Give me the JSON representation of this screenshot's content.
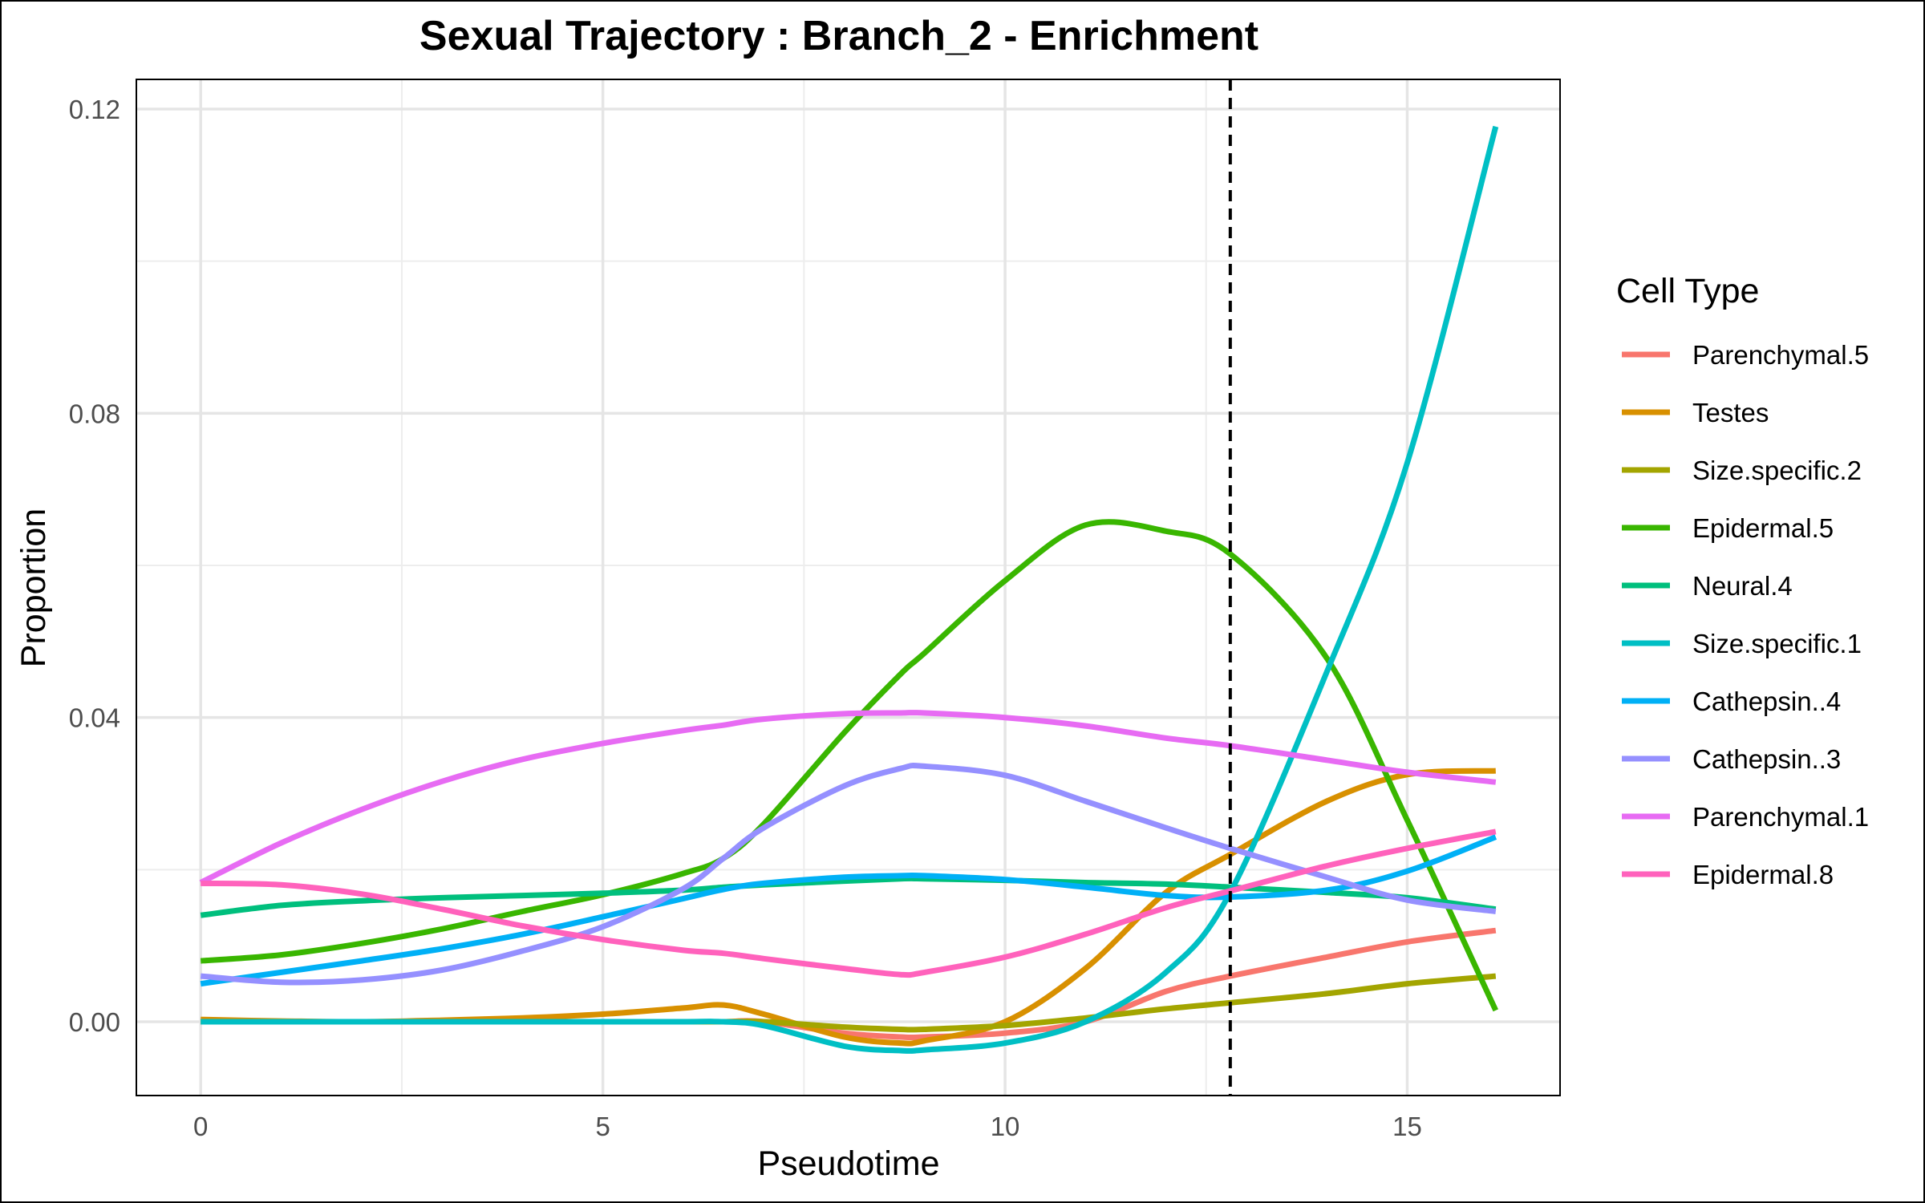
{
  "chart_data": {
    "type": "line",
    "title": "Sexual Trajectory : Branch_2 - Enrichment",
    "xlabel": "Pseudotime",
    "ylabel": "Proportion",
    "xlim": [
      -0.8,
      16.9
    ],
    "ylim": [
      -0.0097,
      0.1239
    ],
    "x_ticks": [
      0,
      5,
      10,
      15
    ],
    "x_tick_labels": [
      "0",
      "5",
      "10",
      "15"
    ],
    "y_ticks": [
      0,
      0.04,
      0.08,
      0.12
    ],
    "y_tick_labels": [
      "0.00",
      "0.04",
      "0.08",
      "0.12"
    ],
    "grid": true,
    "vline": {
      "x": 12.8,
      "style": "dashed",
      "color": "#000000"
    },
    "legend": {
      "title": "Cell Type",
      "position": "right"
    },
    "x": [
      0,
      1,
      2,
      3,
      4,
      5,
      6,
      6.5,
      7,
      8,
      8.7,
      9,
      10,
      11,
      12,
      12.8,
      14,
      15,
      16.1
    ],
    "series": [
      {
        "name": "Parenchymal.5",
        "color": "#F8766D",
        "values": [
          0,
          0,
          0,
          0,
          0,
          0,
          0,
          0,
          0,
          -0.0015,
          -0.002,
          -0.002,
          -0.0015,
          0,
          0.004,
          0.006,
          0.0085,
          0.0105,
          0.012
        ]
      },
      {
        "name": "Testes",
        "color": "#D89000",
        "values": [
          0.0003,
          0.0001,
          0,
          0.0002,
          0.0005,
          0.001,
          0.0018,
          0.0022,
          0.001,
          -0.002,
          -0.0028,
          -0.0025,
          0,
          0.007,
          0.017,
          0.022,
          0.029,
          0.0325,
          0.033
        ]
      },
      {
        "name": "Size.specific.2",
        "color": "#A3A500",
        "values": [
          0,
          0,
          0,
          0,
          0,
          0,
          0,
          0,
          0,
          -0.0007,
          -0.001,
          -0.001,
          -0.0005,
          0.0005,
          0.0017,
          0.0025,
          0.0037,
          0.005,
          0.006
        ]
      },
      {
        "name": "Epidermal.5",
        "color": "#39B600",
        "values": [
          0.008,
          0.0088,
          0.0103,
          0.0122,
          0.0145,
          0.0167,
          0.0195,
          0.0215,
          0.026,
          0.038,
          0.0457,
          0.0485,
          0.058,
          0.0653,
          0.0645,
          0.0615,
          0.0478,
          0.0265,
          0.0015
        ]
      },
      {
        "name": "Neural.4",
        "color": "#00BF7D",
        "values": [
          0.014,
          0.0153,
          0.0159,
          0.0163,
          0.0166,
          0.0169,
          0.0173,
          0.0177,
          0.018,
          0.0185,
          0.0188,
          0.0188,
          0.0186,
          0.0183,
          0.0181,
          0.0177,
          0.017,
          0.0163,
          0.0148
        ]
      },
      {
        "name": "Size.specific.1",
        "color": "#00BFC4",
        "values": [
          0,
          0,
          0,
          0,
          0,
          0,
          0,
          0,
          -0.0005,
          -0.0032,
          -0.0038,
          -0.0037,
          -0.0028,
          0,
          0.0065,
          0.017,
          0.046,
          0.0735,
          0.1177
        ]
      },
      {
        "name": "Cathepsin..4",
        "color": "#00B0F6",
        "values": [
          0.005,
          0.0065,
          0.008,
          0.0096,
          0.0115,
          0.0138,
          0.0162,
          0.0174,
          0.0182,
          0.019,
          0.0192,
          0.0192,
          0.0187,
          0.0177,
          0.0166,
          0.0164,
          0.0173,
          0.0198,
          0.0243
        ]
      },
      {
        "name": "Cathepsin..3",
        "color": "#9590FF",
        "values": [
          0.006,
          0.0052,
          0.0055,
          0.0068,
          0.0093,
          0.0125,
          0.0175,
          0.0215,
          0.0255,
          0.031,
          0.0333,
          0.0336,
          0.0324,
          0.029,
          0.0255,
          0.0228,
          0.019,
          0.016,
          0.0145
        ]
      },
      {
        "name": "Parenchymal.1",
        "color": "#E76BF3",
        "values": [
          0.0183,
          0.0235,
          0.0279,
          0.0316,
          0.0345,
          0.0366,
          0.0383,
          0.039,
          0.0398,
          0.0405,
          0.0406,
          0.0406,
          0.04,
          0.0389,
          0.0373,
          0.0363,
          0.0344,
          0.0328,
          0.0315
        ]
      },
      {
        "name": "Epidermal.8",
        "color": "#FF62BC",
        "values": [
          0.0182,
          0.018,
          0.0168,
          0.0148,
          0.0126,
          0.0108,
          0.0094,
          0.009,
          0.0083,
          0.007,
          0.0062,
          0.0065,
          0.0085,
          0.0115,
          0.015,
          0.0172,
          0.0205,
          0.0228,
          0.025
        ]
      }
    ]
  }
}
